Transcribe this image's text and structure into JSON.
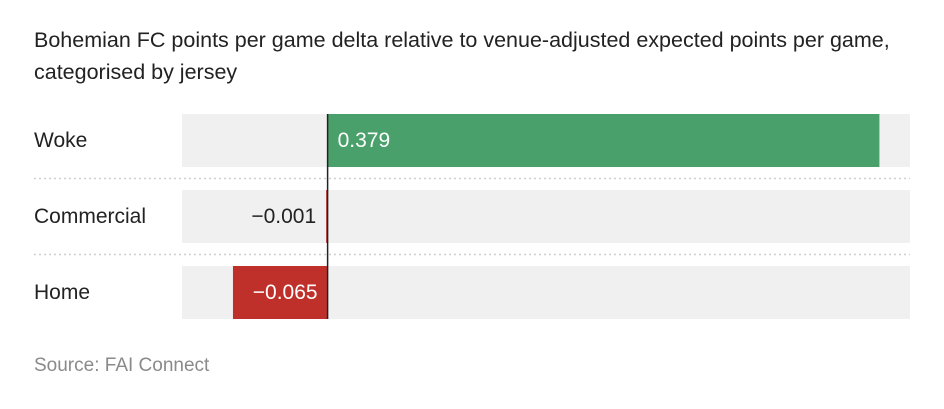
{
  "title": "Bohemian FC points per game delta relative to venue-adjusted expected points per game, categorised by jersey",
  "source": "Source: FAI Connect",
  "colors": {
    "positive": "#4aa06a",
    "negative": "#c0302b",
    "track": "#f0f0f0",
    "separator": "#d0d0d0",
    "axis": "#222222"
  },
  "chart_data": {
    "type": "bar",
    "orientation": "horizontal",
    "categories": [
      "Woke",
      "Commercial",
      "Home"
    ],
    "values": [
      0.379,
      -0.001,
      -0.065
    ],
    "value_labels": [
      "0.379",
      "−0.001",
      "−0.065"
    ],
    "xlim": [
      -0.1,
      0.4
    ],
    "grid": false,
    "legend": "none"
  }
}
